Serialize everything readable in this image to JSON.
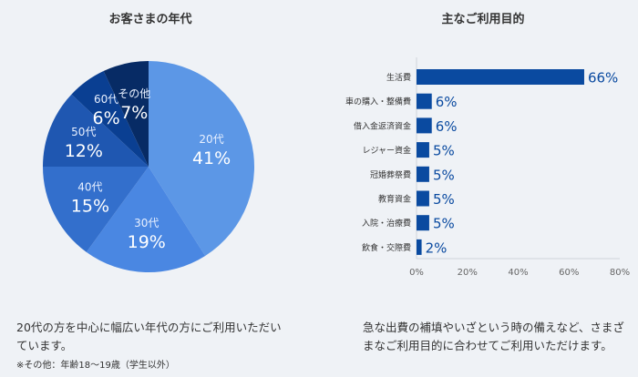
{
  "chart_data": [
    {
      "type": "pie",
      "title": "お客さまの年代",
      "categories": [
        "20代",
        "30代",
        "40代",
        "50代",
        "60代",
        "その他"
      ],
      "values": [
        41,
        19,
        15,
        12,
        6,
        7
      ],
      "labels": [
        "41%",
        "19%",
        "15%",
        "12%",
        "6%",
        "7%"
      ],
      "colors": [
        "#5c97e6",
        "#4a87e2",
        "#336fcc",
        "#1f57b1",
        "#0a3f92",
        "#072b65"
      ]
    },
    {
      "type": "bar",
      "orientation": "horizontal",
      "title": "主なご利用目的",
      "categories": [
        "生活費",
        "車の購入・整備費",
        "借入金返済資金",
        "レジャー資金",
        "冠婚葬祭費",
        "教育資金",
        "入院・治療費",
        "飲食・交際費"
      ],
      "values": [
        66,
        6,
        6,
        5,
        5,
        5,
        5,
        2
      ],
      "labels": [
        "66%",
        "6%",
        "6%",
        "5%",
        "5%",
        "5%",
        "5%",
        "2%"
      ],
      "xlim": [
        0,
        80
      ],
      "xticks": [
        "0%",
        "20%",
        "40%",
        "60%",
        "80%"
      ],
      "color": "#0a4aa0"
    }
  ],
  "descriptions": {
    "left": "20代の方を中心に幅広い年代の方にご利用いただいています。",
    "left_note": "※その他：年齢18～19歳（学生以外）",
    "right": "急な出費の補填やいざという時の備えなど、さまざまなご利用目的に合わせてご利用いただけます。"
  }
}
